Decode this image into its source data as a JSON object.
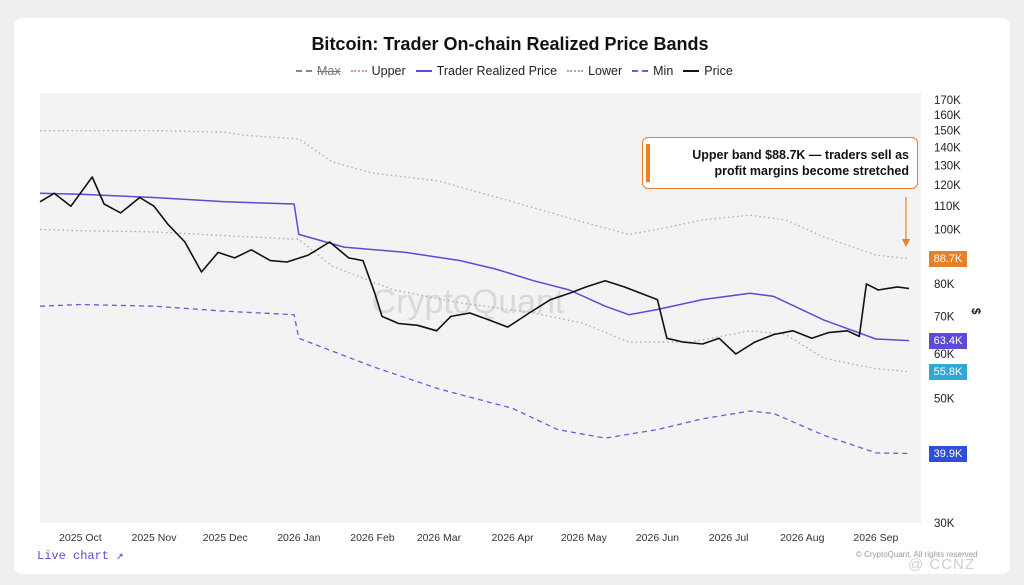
{
  "chart_data": {
    "type": "line",
    "title": "Bitcoin: Trader On-chain Realized Price Bands",
    "y_axis_label": "$",
    "y_scale": "log",
    "ylim": [
      30000,
      175000
    ],
    "y_ticks": [
      {
        "v": 170000,
        "label": "170K"
      },
      {
        "v": 160000,
        "label": "160K"
      },
      {
        "v": 150000,
        "label": "150K"
      },
      {
        "v": 140000,
        "label": "140K"
      },
      {
        "v": 130000,
        "label": "130K"
      },
      {
        "v": 120000,
        "label": "120K"
      },
      {
        "v": 110000,
        "label": "110K"
      },
      {
        "v": 100000,
        "label": "100K"
      },
      {
        "v": 80000,
        "label": "80K"
      },
      {
        "v": 70000,
        "label": "70K"
      },
      {
        "v": 60000,
        "label": "60K"
      },
      {
        "v": 50000,
        "label": "50K"
      },
      {
        "v": 30000,
        "label": "30K"
      }
    ],
    "x_range": [
      "2025-09-14",
      "2026-09-20"
    ],
    "x_ticks": [
      {
        "date": "2025-10-01",
        "label": "2025 Oct"
      },
      {
        "date": "2025-11-01",
        "label": "2025 Nov"
      },
      {
        "date": "2025-12-01",
        "label": "2025 Dec"
      },
      {
        "date": "2026-01-01",
        "label": "2026 Jan"
      },
      {
        "date": "2026-02-01",
        "label": "2026 Feb"
      },
      {
        "date": "2026-03-01",
        "label": "2026 Mar"
      },
      {
        "date": "2026-04-01",
        "label": "2026 Apr"
      },
      {
        "date": "2026-05-01",
        "label": "2026 May"
      },
      {
        "date": "2026-06-01",
        "label": "2026 Jun"
      },
      {
        "date": "2026-07-01",
        "label": "2026 Jul"
      },
      {
        "date": "2026-08-01",
        "label": "2026 Aug"
      },
      {
        "date": "2026-09-01",
        "label": "2026 Sep"
      }
    ],
    "series": [
      {
        "name": "Max",
        "color": "#888888",
        "style": "dashed",
        "visible": false,
        "points": []
      },
      {
        "name": "Upper",
        "color": "#c8a090",
        "style": "dotted",
        "points": [
          [
            "2025-09-14",
            150000
          ],
          [
            "2025-10-01",
            150000
          ],
          [
            "2025-11-01",
            150000
          ],
          [
            "2025-12-01",
            149000
          ],
          [
            "2025-12-10",
            147000
          ],
          [
            "2026-01-01",
            145000
          ],
          [
            "2026-01-15",
            132000
          ],
          [
            "2026-02-01",
            126000
          ],
          [
            "2026-03-01",
            122000
          ],
          [
            "2026-04-01",
            112000
          ],
          [
            "2026-05-01",
            103000
          ],
          [
            "2026-05-20",
            98000
          ],
          [
            "2026-06-01",
            100000
          ],
          [
            "2026-06-20",
            104000
          ],
          [
            "2026-07-10",
            106000
          ],
          [
            "2026-07-25",
            104000
          ],
          [
            "2026-08-10",
            97000
          ],
          [
            "2026-09-01",
            90000
          ],
          [
            "2026-09-15",
            88700
          ]
        ]
      },
      {
        "name": "Trader Realized Price",
        "color": "#5b4bd8",
        "style": "solid",
        "points": [
          [
            "2025-09-14",
            116000
          ],
          [
            "2025-10-01",
            115500
          ],
          [
            "2025-11-01",
            114000
          ],
          [
            "2025-12-01",
            112000
          ],
          [
            "2025-12-30",
            111000
          ],
          [
            "2026-01-01",
            98000
          ],
          [
            "2026-01-20",
            93000
          ],
          [
            "2026-02-15",
            91000
          ],
          [
            "2026-03-10",
            88000
          ],
          [
            "2026-03-25",
            85000
          ],
          [
            "2026-04-10",
            81000
          ],
          [
            "2026-04-25",
            78000
          ],
          [
            "2026-05-10",
            73000
          ],
          [
            "2026-05-20",
            70500
          ],
          [
            "2026-06-01",
            72000
          ],
          [
            "2026-06-20",
            75000
          ],
          [
            "2026-07-10",
            77000
          ],
          [
            "2026-07-20",
            76000
          ],
          [
            "2026-08-10",
            69000
          ],
          [
            "2026-09-01",
            63800
          ],
          [
            "2026-09-15",
            63400
          ]
        ]
      },
      {
        "name": "Lower",
        "color": "#a8a8a8",
        "style": "dotted",
        "points": [
          [
            "2025-09-14",
            100000
          ],
          [
            "2025-10-01",
            99500
          ],
          [
            "2025-11-01",
            99000
          ],
          [
            "2025-12-01",
            97500
          ],
          [
            "2026-01-01",
            96000
          ],
          [
            "2026-01-15",
            86000
          ],
          [
            "2026-02-10",
            78000
          ],
          [
            "2026-03-10",
            74000
          ],
          [
            "2026-04-10",
            71000
          ],
          [
            "2026-05-01",
            68000
          ],
          [
            "2026-05-20",
            63000
          ],
          [
            "2026-06-15",
            63000
          ],
          [
            "2026-07-10",
            66000
          ],
          [
            "2026-07-25",
            65000
          ],
          [
            "2026-08-10",
            59000
          ],
          [
            "2026-09-01",
            56500
          ],
          [
            "2026-09-15",
            55800
          ]
        ]
      },
      {
        "name": "Min",
        "color": "#6a5ae0",
        "style": "dashed",
        "points": [
          [
            "2025-09-14",
            73000
          ],
          [
            "2025-10-01",
            73500
          ],
          [
            "2025-11-01",
            73000
          ],
          [
            "2025-12-01",
            71500
          ],
          [
            "2025-12-30",
            70500
          ],
          [
            "2026-01-01",
            64000
          ],
          [
            "2026-02-01",
            57000
          ],
          [
            "2026-03-01",
            52000
          ],
          [
            "2026-04-01",
            48000
          ],
          [
            "2026-04-20",
            44000
          ],
          [
            "2026-05-10",
            42500
          ],
          [
            "2026-06-01",
            44000
          ],
          [
            "2026-06-20",
            46000
          ],
          [
            "2026-07-10",
            47500
          ],
          [
            "2026-07-20",
            47000
          ],
          [
            "2026-08-10",
            43000
          ],
          [
            "2026-09-01",
            40000
          ],
          [
            "2026-09-15",
            39900
          ]
        ]
      },
      {
        "name": "Price",
        "color": "#111111",
        "style": "solid",
        "points": [
          [
            "2025-09-14",
            112000
          ],
          [
            "2025-09-20",
            116000
          ],
          [
            "2025-09-27",
            110000
          ],
          [
            "2025-10-06",
            124000
          ],
          [
            "2025-10-11",
            111000
          ],
          [
            "2025-10-18",
            107000
          ],
          [
            "2025-10-26",
            114000
          ],
          [
            "2025-11-01",
            110000
          ],
          [
            "2025-11-07",
            102000
          ],
          [
            "2025-11-14",
            95000
          ],
          [
            "2025-11-21",
            84000
          ],
          [
            "2025-11-28",
            91000
          ],
          [
            "2025-12-05",
            89000
          ],
          [
            "2025-12-12",
            92000
          ],
          [
            "2025-12-20",
            88000
          ],
          [
            "2025-12-27",
            87500
          ],
          [
            "2026-01-05",
            90000
          ],
          [
            "2026-01-14",
            95000
          ],
          [
            "2026-01-22",
            89000
          ],
          [
            "2026-01-28",
            88000
          ],
          [
            "2026-02-02",
            77000
          ],
          [
            "2026-02-05",
            70000
          ],
          [
            "2026-02-12",
            68000
          ],
          [
            "2026-02-20",
            67500
          ],
          [
            "2026-02-28",
            66000
          ],
          [
            "2026-03-06",
            70000
          ],
          [
            "2026-03-14",
            71000
          ],
          [
            "2026-03-22",
            69000
          ],
          [
            "2026-03-30",
            67000
          ],
          [
            "2026-04-08",
            71000
          ],
          [
            "2026-04-17",
            75000
          ],
          [
            "2026-04-25",
            77000
          ],
          [
            "2026-05-02",
            79000
          ],
          [
            "2026-05-10",
            81000
          ],
          [
            "2026-05-18",
            79000
          ],
          [
            "2026-05-25",
            77000
          ],
          [
            "2026-06-01",
            75000
          ],
          [
            "2026-06-05",
            64000
          ],
          [
            "2026-06-12",
            63000
          ],
          [
            "2026-06-20",
            62500
          ],
          [
            "2026-06-27",
            64000
          ],
          [
            "2026-07-04",
            60000
          ],
          [
            "2026-07-12",
            63000
          ],
          [
            "2026-07-20",
            65000
          ],
          [
            "2026-07-28",
            66000
          ],
          [
            "2026-08-05",
            64000
          ],
          [
            "2026-08-12",
            65500
          ],
          [
            "2026-08-20",
            66000
          ],
          [
            "2026-08-25",
            64500
          ],
          [
            "2026-08-28",
            80000
          ],
          [
            "2026-09-02",
            78000
          ],
          [
            "2026-09-10",
            79000
          ],
          [
            "2026-09-15",
            78500
          ]
        ]
      }
    ],
    "value_tags": [
      {
        "label": "88.7K",
        "value": 88700,
        "color": "#e8802a"
      },
      {
        "label": "63.4K",
        "value": 63400,
        "color": "#5b4bd8"
      },
      {
        "label": "55.8K",
        "value": 55800,
        "color": "#2fa7d9"
      },
      {
        "label": "39.9K",
        "value": 39900,
        "color": "#2f4fd8"
      }
    ],
    "annotation": "Upper band $88.7K — traders sell as profit margins become stretched",
    "watermark": "CryptoQuant"
  },
  "legend": [
    {
      "label": "Max",
      "color": "#888888",
      "style": "dashed",
      "enabled": false
    },
    {
      "label": "Upper",
      "color": "#c8a090",
      "style": "dotted",
      "enabled": true
    },
    {
      "label": "Trader Realized Price",
      "color": "#5b4bd8",
      "style": "solid",
      "enabled": true
    },
    {
      "label": "Lower",
      "color": "#a8a8a8",
      "style": "dotted",
      "enabled": true
    },
    {
      "label": "Min",
      "color": "#6a5ae0",
      "style": "dashed",
      "enabled": true
    },
    {
      "label": "Price",
      "color": "#111111",
      "style": "solid",
      "enabled": true
    }
  ],
  "footer": {
    "live_chart": "Live chart ↗",
    "credit": "© CryptoQuant. All rights reserved",
    "brand": "@ CCNZ"
  }
}
